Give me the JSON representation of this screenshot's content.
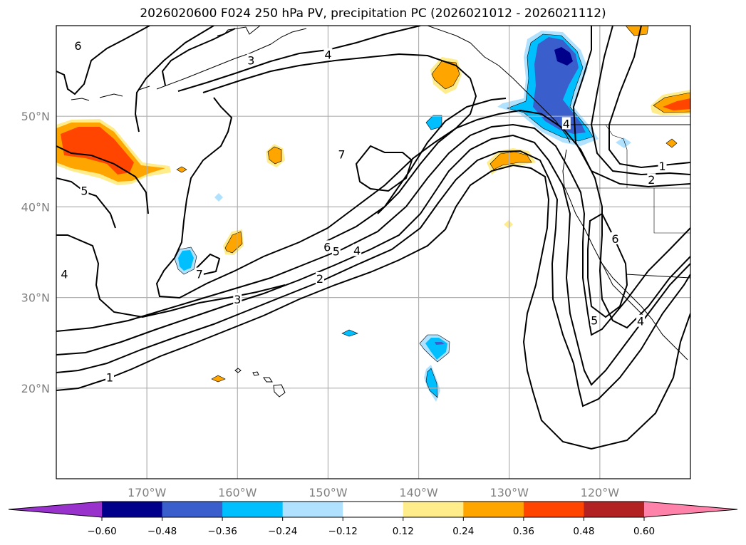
{
  "chart_data": {
    "type": "heatmap",
    "title": "2026020600 F024 250 hPa PV, precipitation PC (2026021012 - 2026021112)",
    "map": {
      "projection": "PlateCarree",
      "lon_range": [
        -180,
        -110
      ],
      "lat_range": [
        10,
        60
      ],
      "gridlines": true
    },
    "lat_ticks": [
      {
        "value": 50,
        "label": "50°N"
      },
      {
        "value": 40,
        "label": "40°N"
      },
      {
        "value": 30,
        "label": "30°N"
      },
      {
        "value": 20,
        "label": "20°N"
      }
    ],
    "lon_ticks": [
      {
        "value": -170,
        "label": "170°W"
      },
      {
        "value": -160,
        "label": "160°W"
      },
      {
        "value": -150,
        "label": "150°W"
      },
      {
        "value": -140,
        "label": "140°W"
      },
      {
        "value": -130,
        "label": "130°W"
      },
      {
        "value": -120,
        "label": "120°W"
      }
    ],
    "contour_field": "250 hPa PV",
    "contour_levels": [
      1,
      2,
      3,
      4,
      5,
      6,
      7
    ],
    "contour_labels": [
      {
        "text": "6",
        "lon": -177.6,
        "lat": 57.8
      },
      {
        "text": "3",
        "lon": -158.5,
        "lat": 56.2
      },
      {
        "text": "4",
        "lon": -150.0,
        "lat": 56.8
      },
      {
        "text": "7",
        "lon": -148.5,
        "lat": 45.8
      },
      {
        "text": "5",
        "lon": -176.9,
        "lat": 41.8
      },
      {
        "text": "4",
        "lon": -179.1,
        "lat": 32.6
      },
      {
        "text": "7",
        "lon": -164.2,
        "lat": 32.6
      },
      {
        "text": "6",
        "lon": -150.1,
        "lat": 35.6
      },
      {
        "text": "5",
        "lon": -149.1,
        "lat": 35.1
      },
      {
        "text": "4",
        "lon": -146.8,
        "lat": 35.2
      },
      {
        "text": "3",
        "lon": -160.0,
        "lat": 29.8
      },
      {
        "text": "2",
        "lon": -150.9,
        "lat": 32.1
      },
      {
        "text": "1",
        "lon": -174.1,
        "lat": 21.2
      },
      {
        "text": "4",
        "lon": -123.7,
        "lat": 49.2
      },
      {
        "text": "1",
        "lon": -113.1,
        "lat": 44.5
      },
      {
        "text": "2",
        "lon": -114.3,
        "lat": 43.0
      },
      {
        "text": "6",
        "lon": -118.3,
        "lat": 36.5
      },
      {
        "text": "5",
        "lon": -120.6,
        "lat": 27.5
      },
      {
        "text": "4",
        "lon": -115.5,
        "lat": 27.4
      }
    ],
    "shading_field": "precipitation PC",
    "colorbar": {
      "orientation": "horizontal",
      "extend": "both",
      "ticks": [
        -0.6,
        -0.48,
        -0.36,
        -0.24,
        -0.12,
        0.12,
        0.24,
        0.36,
        0.48,
        0.6
      ],
      "tick_labels": [
        "−0.60",
        "−0.48",
        "−0.36",
        "−0.24",
        "−0.12",
        "0.12",
        "0.24",
        "0.36",
        "0.48",
        "0.60"
      ],
      "bins": [
        {
          "range": "< -0.60",
          "color": "#9932CC"
        },
        {
          "range": "-0.60 to -0.48",
          "color": "#00008B"
        },
        {
          "range": "-0.48 to -0.36",
          "color": "#3A5FCD"
        },
        {
          "range": "-0.36 to -0.24",
          "color": "#00BFFF"
        },
        {
          "range": "-0.24 to -0.12",
          "color": "#B0E2FF"
        },
        {
          "range": "-0.12 to 0.12",
          "color": "#FFFFFF"
        },
        {
          "range": "0.12 to 0.24",
          "color": "#FFEC8B"
        },
        {
          "range": "0.24 to 0.36",
          "color": "#FFA500"
        },
        {
          "range": "0.36 to 0.48",
          "color": "#FF4500"
        },
        {
          "range": "0.48 to 0.60",
          "color": "#B22222"
        },
        {
          "range": "> 0.60",
          "color": "#FF82AB"
        }
      ]
    },
    "precip_features": [
      {
        "name": "west-aleutian-positive",
        "sign": "positive",
        "max_bin": "0.36 to 0.48",
        "lon": -175.5,
        "lat": 46.5
      },
      {
        "name": "gulf-of-alaska-negative",
        "sign": "negative",
        "max_bin": "-0.60 to -0.48",
        "lon": -125.5,
        "lat": 54.0
      },
      {
        "name": "pacific-nw-positive",
        "sign": "positive",
        "max_bin": "0.24 to 0.36",
        "lon": -131.0,
        "lat": 44.5
      },
      {
        "name": "canada-interior-positive",
        "sign": "positive",
        "max_bin": "0.36 to 0.48",
        "lon": -112.5,
        "lat": 51.5
      },
      {
        "name": "subtropical-negative",
        "sign": "negative",
        "max_bin": "-0.36 to -0.24",
        "lon": -138.0,
        "lat": 22.5
      },
      {
        "name": "central-pacific-negative",
        "sign": "negative",
        "max_bin": "-0.36 to -0.24",
        "lon": -166.0,
        "lat": 34.8
      }
    ]
  }
}
